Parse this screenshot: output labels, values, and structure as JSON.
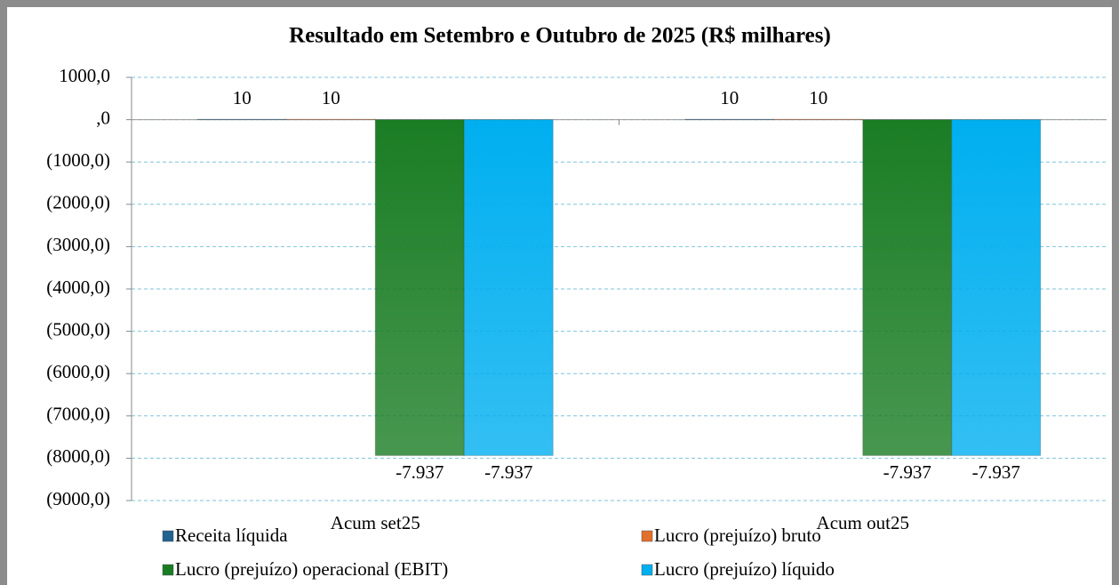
{
  "chart_data": {
    "type": "bar",
    "title": "Resultado em Setembro e Outubro de 2025 (R$ milhares)",
    "categories": [
      "Acum set25",
      "Acum out25"
    ],
    "series": [
      {
        "name": "Receita líquida",
        "color": "#1f6391",
        "values": [
          10,
          10
        ],
        "value_labels": [
          "10",
          "10"
        ]
      },
      {
        "name": "Lucro (prejuízo) bruto",
        "color": "#e3702a",
        "values": [
          10,
          10
        ],
        "value_labels": [
          "10",
          "10"
        ]
      },
      {
        "name": "Lucro (prejuízo) operacional (EBIT)",
        "color": "#1a7d24",
        "values": [
          -7937,
          -7937
        ],
        "value_labels": [
          "-7.937",
          "-7.937"
        ]
      },
      {
        "name": "Lucro (prejuízo) líquido",
        "color": "#00aff0",
        "values": [
          -7937,
          -7937
        ],
        "value_labels": [
          "-7.937",
          "-7.937"
        ]
      }
    ],
    "ylim": [
      -9000,
      1000
    ],
    "yticks": [
      {
        "value": 1000,
        "label": "1000,0"
      },
      {
        "value": 0,
        "label": ",0"
      },
      {
        "value": -1000,
        "label": "(1000,0)"
      },
      {
        "value": -2000,
        "label": "(2000,0)"
      },
      {
        "value": -3000,
        "label": "(3000,0)"
      },
      {
        "value": -4000,
        "label": "(4000,0)"
      },
      {
        "value": -5000,
        "label": "(5000,0)"
      },
      {
        "value": -6000,
        "label": "(6000,0)"
      },
      {
        "value": -7000,
        "label": "(7000,0)"
      },
      {
        "value": -8000,
        "label": "(8000,0)"
      },
      {
        "value": -9000,
        "label": "(9000,0)"
      }
    ],
    "grid": true
  }
}
